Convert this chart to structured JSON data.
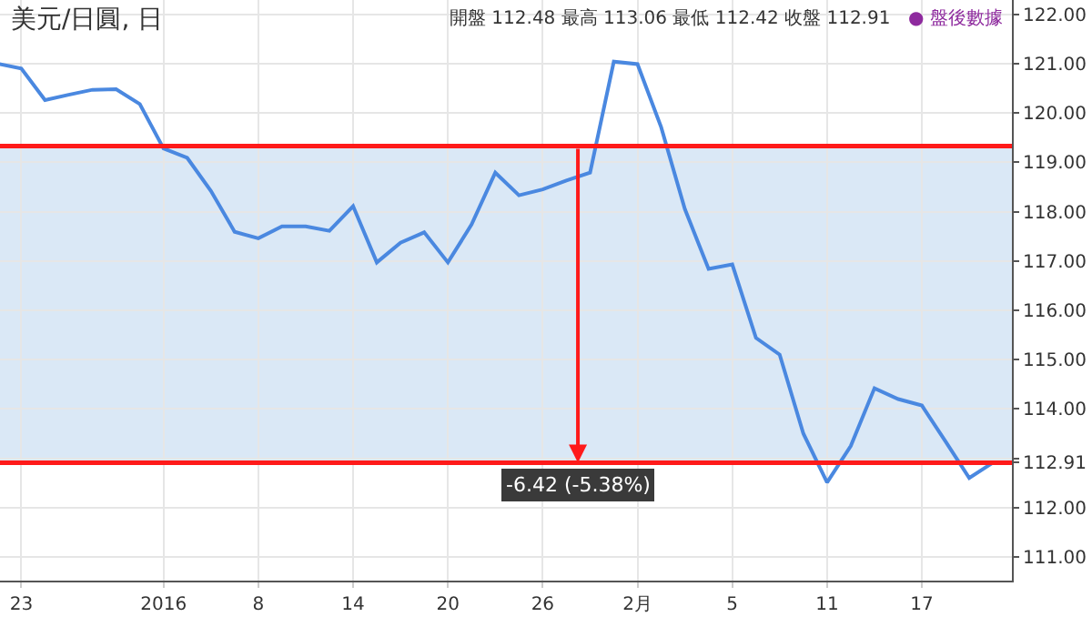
{
  "chart_data": {
    "type": "line",
    "title": "美元/日圓, 日",
    "categories": [
      null,
      "23",
      null,
      null,
      null,
      null,
      null,
      "2016",
      null,
      null,
      null,
      "8",
      null,
      null,
      null,
      "14",
      null,
      null,
      null,
      "20",
      null,
      null,
      null,
      "26",
      null,
      null,
      null,
      "2月",
      null,
      null,
      null,
      "5",
      null,
      null,
      null,
      "11",
      null,
      null,
      null,
      "17",
      null,
      null,
      null
    ],
    "series": [
      {
        "color": "#4a88e0",
        "values": [
          121.0,
          120.9,
          120.26,
          120.37,
          120.47,
          120.48,
          120.18,
          119.28,
          119.09,
          118.42,
          117.59,
          117.46,
          117.7,
          117.7,
          117.61,
          118.11,
          116.97,
          117.37,
          117.58,
          116.97,
          117.74,
          118.79,
          118.33,
          118.45,
          118.63,
          118.79,
          121.04,
          120.99,
          119.71,
          118.05,
          116.84,
          116.93,
          115.44,
          115.1,
          113.5,
          112.51,
          113.25,
          114.42,
          114.2,
          114.07,
          113.34,
          112.6,
          112.91
        ]
      }
    ],
    "ylim": [
      110.52,
      122.29
    ],
    "yticks": [
      {
        "value": 111,
        "label": "111.00"
      },
      {
        "value": 112,
        "label": "112.00"
      },
      {
        "value": 112.91,
        "label": "112.91"
      },
      {
        "value": 113,
        "label": null
      },
      {
        "value": 114,
        "label": "114.00"
      },
      {
        "value": 115,
        "label": "115.00"
      },
      {
        "value": 116,
        "label": "116.00"
      },
      {
        "value": 117,
        "label": "117.00"
      },
      {
        "value": 118,
        "label": "118.00"
      },
      {
        "value": 119,
        "label": "119.00"
      },
      {
        "value": 120,
        "label": "120.00"
      },
      {
        "value": 121,
        "label": "121.00"
      },
      {
        "value": 122,
        "label": "122.00"
      }
    ],
    "bands": [
      {
        "axis": "y",
        "from": 112.91,
        "to": 119.33,
        "color": "#dae8f6"
      }
    ],
    "ref_lines": [
      {
        "axis": "y",
        "value": 119.33,
        "color": "#ff1a1a"
      },
      {
        "axis": "y",
        "value": 112.91,
        "color": "#ff1a1a"
      }
    ],
    "annotations": [
      "開盤 112.48 最高 113.06 最低 112.42 收盤 112.91",
      "● 盤後數據",
      {
        "text": "-6.42 (-5.38%)",
        "y": 112.91
      }
    ],
    "grid": true,
    "marker": "none",
    "line_style": "solid"
  }
}
